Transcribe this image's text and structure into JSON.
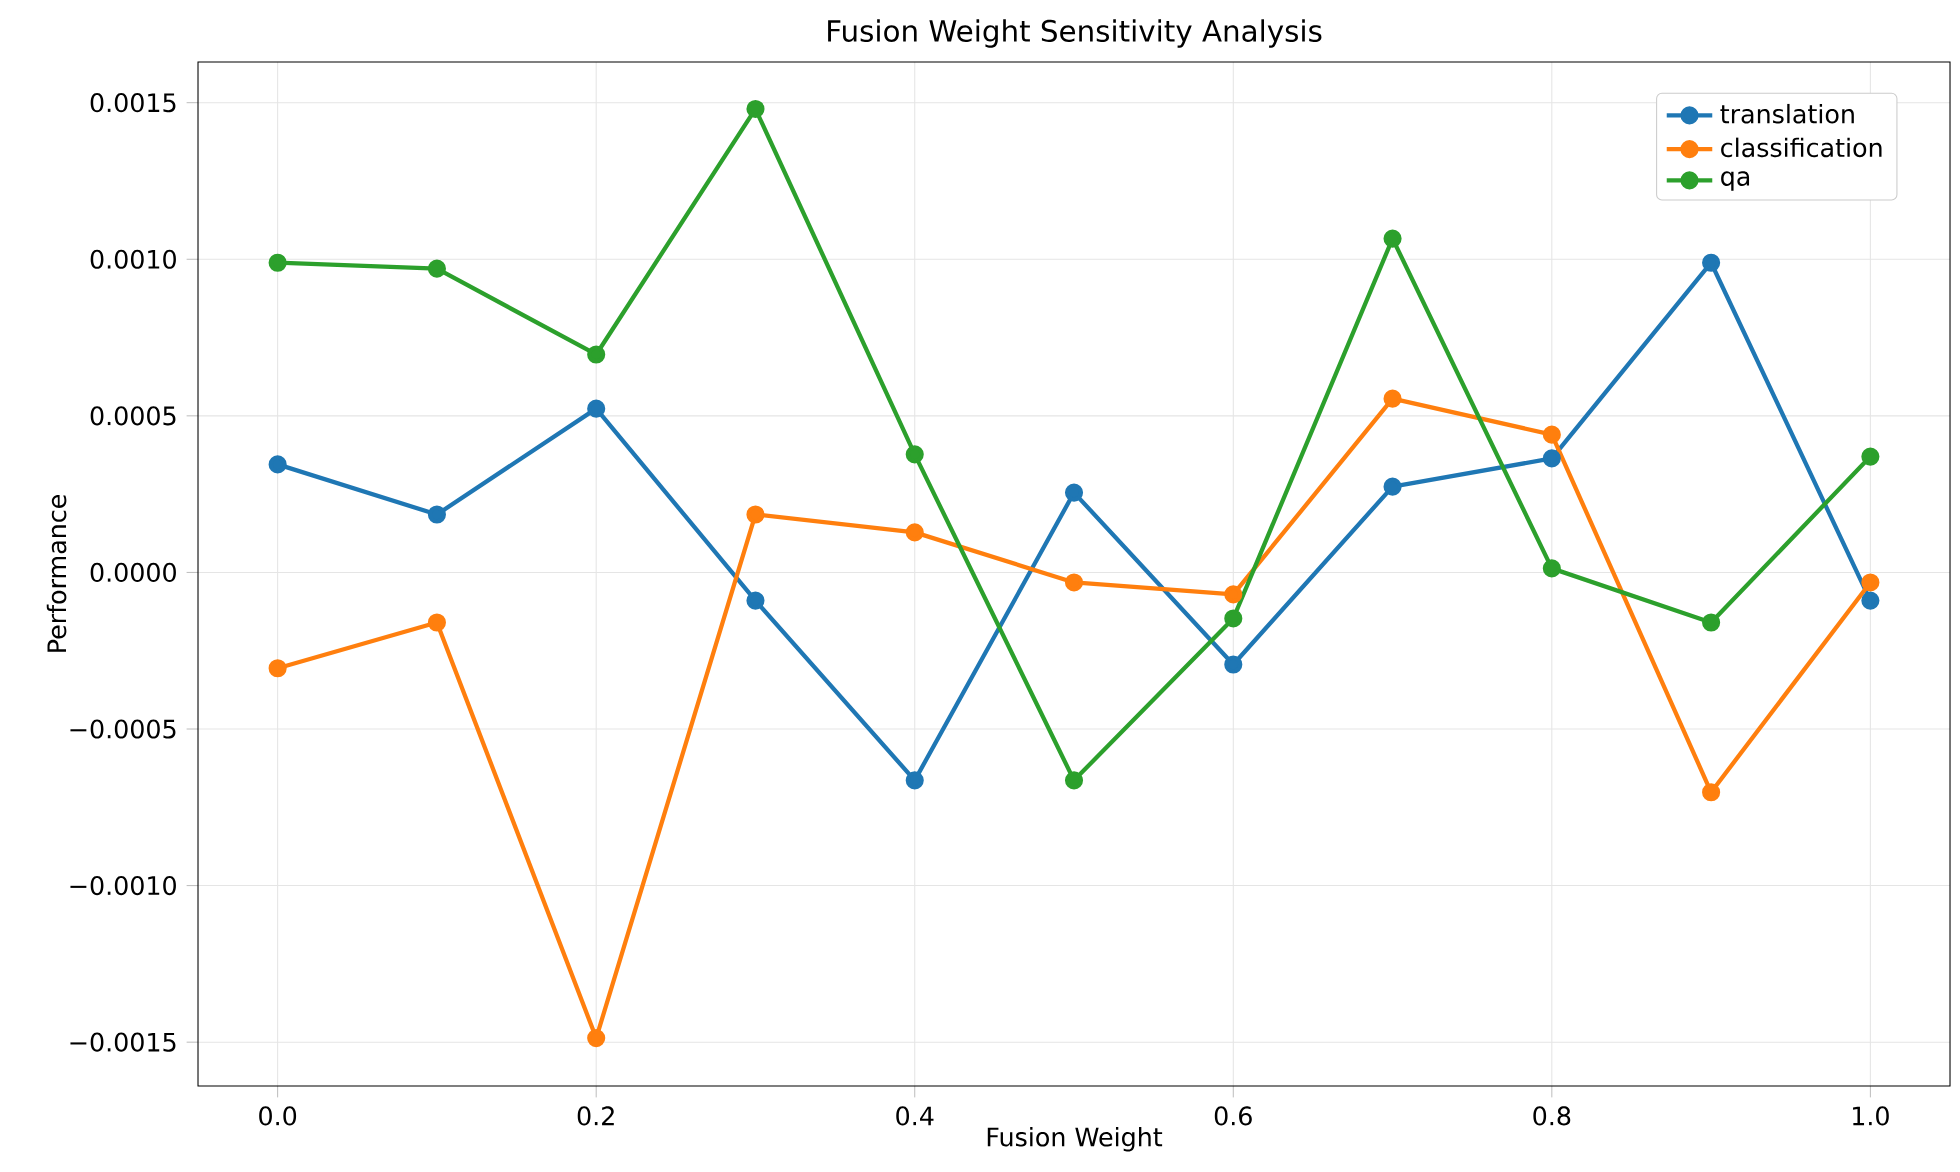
{
  "chart_data": {
    "type": "line",
    "title": "Fusion Weight Sensitivity Analysis",
    "xlabel": "Fusion Weight",
    "ylabel": "Performance",
    "x": [
      0.0,
      0.1,
      0.2,
      0.3,
      0.4,
      0.5,
      0.6,
      0.7,
      0.8,
      0.9,
      1.0
    ],
    "series": [
      {
        "name": "translation",
        "color": "#1f77b4",
        "values": [
          0.000345,
          0.000185,
          0.000523,
          -9e-05,
          -0.000664,
          0.000255,
          -0.000294,
          0.000274,
          0.000364,
          0.000989,
          -9e-05
        ]
      },
      {
        "name": "classification",
        "color": "#ff7f0e",
        "values": [
          -0.000306,
          -0.00016,
          -0.001487,
          0.000185,
          0.000128,
          -3.2e-05,
          -7e-05,
          0.000555,
          0.00044,
          -0.000702,
          -3.2e-05
        ]
      },
      {
        "name": "qa",
        "color": "#2ca02c",
        "values": [
          0.000989,
          0.00097,
          0.000696,
          0.00148,
          0.000377,
          -0.000664,
          -0.000147,
          0.001066,
          1.3e-05,
          -0.00016,
          0.00037
        ]
      }
    ],
    "xlim": [
      -0.05,
      1.05
    ],
    "ylim": [
      -0.00164,
      0.00163
    ],
    "xticks": [
      {
        "value": 0.0,
        "label": "0.0"
      },
      {
        "value": 0.2,
        "label": "0.2"
      },
      {
        "value": 0.4,
        "label": "0.4"
      },
      {
        "value": 0.6,
        "label": "0.6"
      },
      {
        "value": 0.8,
        "label": "0.8"
      },
      {
        "value": 1.0,
        "label": "1.0"
      }
    ],
    "yticks": [
      {
        "value": -0.0015,
        "label": "−0.0015"
      },
      {
        "value": -0.001,
        "label": "−0.0010"
      },
      {
        "value": -0.0005,
        "label": "−0.0005"
      },
      {
        "value": 0,
        "label": "0.0000"
      },
      {
        "value": 0.0005,
        "label": "0.0005"
      },
      {
        "value": 0.001,
        "label": "0.0010"
      },
      {
        "value": 0.0015,
        "label": "0.0015"
      }
    ],
    "grid": true,
    "legend": "top right",
    "marker": "circle",
    "line_style": "solid"
  }
}
